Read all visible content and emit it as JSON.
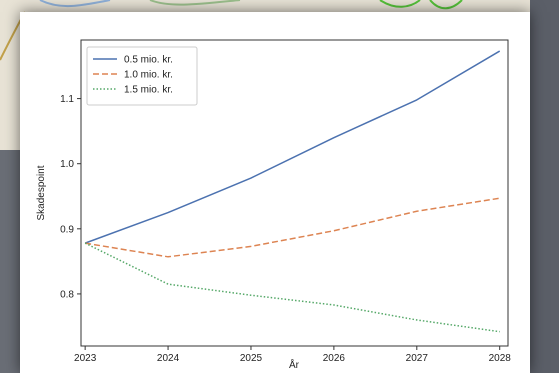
{
  "chart_data": {
    "type": "line",
    "x": [
      2023,
      2024,
      2025,
      2026,
      2027,
      2028
    ],
    "xlabel": "År",
    "ylabel": "Skadespoint",
    "xlim": [
      2022.95,
      2028.1
    ],
    "ylim": [
      0.72,
      1.19
    ],
    "yticks": [
      0.8,
      0.9,
      1.0,
      1.1
    ],
    "yticklabels": [
      "0.8",
      "0.9",
      "1.0",
      "1.1"
    ],
    "xticklabels": [
      "2023",
      "2024",
      "2025",
      "2026",
      "2027",
      "2028"
    ],
    "legend_position": "upper-left",
    "grid": false,
    "series": [
      {
        "name": "0.5 mio. kr.",
        "values": [
          0.878,
          0.925,
          0.978,
          1.04,
          1.098,
          1.173
        ],
        "color": "#4c72b0",
        "dash": "solid"
      },
      {
        "name": "1.0 mio. kr.",
        "values": [
          0.878,
          0.857,
          0.873,
          0.897,
          0.927,
          0.947
        ],
        "color": "#dd8452",
        "dash": "dashed"
      },
      {
        "name": "1.5 mio. kr.",
        "values": [
          0.878,
          0.815,
          0.798,
          0.783,
          0.76,
          0.742
        ],
        "color": "#55a868",
        "dash": "dotted"
      }
    ]
  }
}
